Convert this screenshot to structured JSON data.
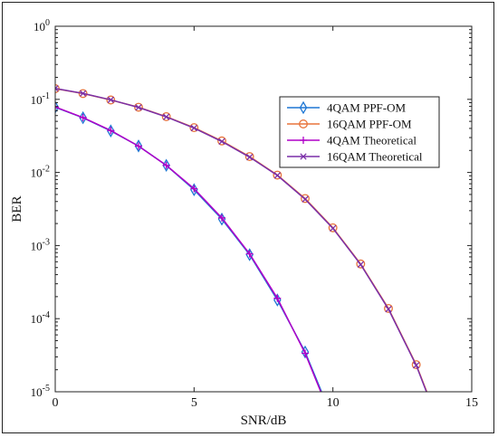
{
  "chart_data": {
    "type": "line",
    "xlabel": "SNR/dB",
    "ylabel": "BER",
    "xlim": [
      0,
      15
    ],
    "ylim": [
      1e-05,
      1
    ],
    "yscale": "log",
    "grid": false,
    "legend_position": "top-right",
    "x_ticks": [
      0,
      5,
      10,
      15
    ],
    "x_tick_labels": [
      "0",
      "5",
      "10",
      "15"
    ],
    "y_ticks": [
      1e-05,
      0.0001,
      0.001,
      0.01,
      0.1,
      1
    ],
    "y_tick_bases": [
      "10",
      "10",
      "10",
      "10",
      "10",
      "10"
    ],
    "y_tick_exps": [
      "-5",
      "-4",
      "-3",
      "-2",
      "-1",
      "0"
    ],
    "series": [
      {
        "name": "4QAM PPF-OM",
        "color": "#1f77d4",
        "marker": "diamond",
        "x": [
          0,
          1,
          2,
          3,
          4,
          5,
          6,
          7,
          8,
          9,
          10
        ],
        "y": [
          0.078,
          0.056,
          0.037,
          0.023,
          0.0125,
          0.0058,
          0.0023,
          0.00075,
          0.00018,
          3.5e-05,
          4.2e-06
        ]
      },
      {
        "name": "16QAM PPF-OM",
        "color": "#e8743b",
        "marker": "circle",
        "x": [
          0,
          1,
          2,
          3,
          4,
          5,
          6,
          7,
          8,
          9,
          10,
          11,
          12,
          13,
          14
        ],
        "y": [
          0.14,
          0.12,
          0.098,
          0.078,
          0.058,
          0.041,
          0.027,
          0.0165,
          0.0092,
          0.0044,
          0.00175,
          0.00056,
          0.000138,
          2.35e-05,
          2.5e-06
        ]
      },
      {
        "name": "4QAM Theoretical",
        "color": "#b000c8",
        "marker": "plus",
        "x": [
          0,
          1,
          2,
          3,
          4,
          5,
          6,
          7,
          8,
          9,
          10
        ],
        "y": [
          0.0786,
          0.0563,
          0.0375,
          0.0229,
          0.0125,
          0.006,
          0.00239,
          0.00077,
          0.00019,
          3.36e-05,
          3.9e-06
        ]
      },
      {
        "name": "16QAM Theoretical",
        "color": "#7a2fa8",
        "marker": "x",
        "x": [
          0,
          1,
          2,
          3,
          4,
          5,
          6,
          7,
          8,
          9,
          10,
          11,
          12,
          13,
          14
        ],
        "y": [
          0.141,
          0.1205,
          0.0985,
          0.0775,
          0.0575,
          0.0405,
          0.0265,
          0.0162,
          0.0091,
          0.0043,
          0.00172,
          0.00055,
          0.000135,
          2.3e-05,
          2.4e-06
        ]
      }
    ]
  }
}
